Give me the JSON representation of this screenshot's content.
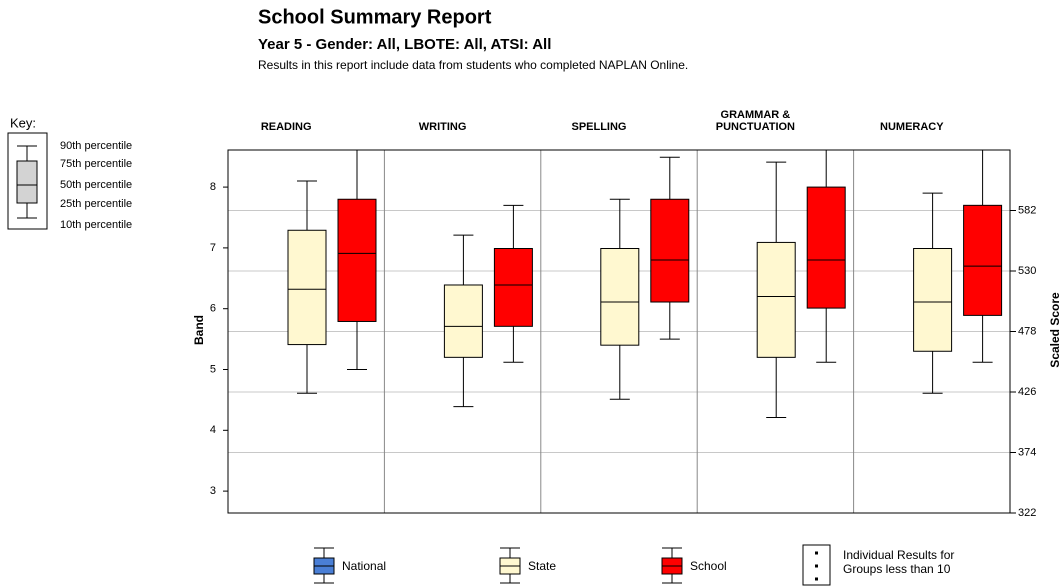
{
  "chart_data": {
    "type": "boxplot",
    "title": "School Summary Report",
    "subtitle": "Year 5 - Gender: All, LBOTE: All, ATSI: All",
    "note": "Results in this report include data from students who completed NAPLAN Online.",
    "ylabel": "Band",
    "y2label": "Scaled Score",
    "categories": [
      "READING",
      "WRITING",
      "SPELLING",
      "GRAMMAR & PUNCTUATION",
      "NUMERACY"
    ],
    "series": [
      {
        "name": "State",
        "color": "#fff8d0",
        "values": [
          [
            4.61,
            5.41,
            6.32,
            7.29,
            8.1
          ],
          [
            4.39,
            5.2,
            5.71,
            6.39,
            7.21
          ],
          [
            4.51,
            5.4,
            6.11,
            6.99,
            7.8
          ],
          [
            4.21,
            5.2,
            6.2,
            7.09,
            8.41
          ],
          [
            4.61,
            5.3,
            6.11,
            6.99,
            7.9
          ]
        ]
      },
      {
        "name": "School",
        "color": "#ff0000",
        "values": [
          [
            5.0,
            5.79,
            6.91,
            7.8,
            8.61
          ],
          [
            5.12,
            5.71,
            6.39,
            6.99,
            7.7
          ],
          [
            5.5,
            6.11,
            6.8,
            7.8,
            8.49
          ],
          [
            5.12,
            6.01,
            6.8,
            8.0,
            8.61
          ],
          [
            5.12,
            5.89,
            6.7,
            7.7,
            8.61
          ]
        ]
      }
    ],
    "legend_extra": [
      {
        "name": "National",
        "color": "#4a7fd6"
      },
      {
        "name": "Individual Results for Groups less than 10"
      }
    ],
    "key": {
      "title": "Key:",
      "labels": [
        "90th percentile",
        "75th percentile",
        "50th percentile",
        "25th percentile",
        "10th percentile"
      ]
    },
    "ylim": [
      2.64,
      8.61
    ],
    "yticks": [
      3,
      4,
      5,
      6,
      7,
      8
    ],
    "y2lim": [
      322,
      634
    ],
    "y2ticks": [
      322,
      374,
      426,
      478,
      530,
      582
    ],
    "grid": true
  }
}
